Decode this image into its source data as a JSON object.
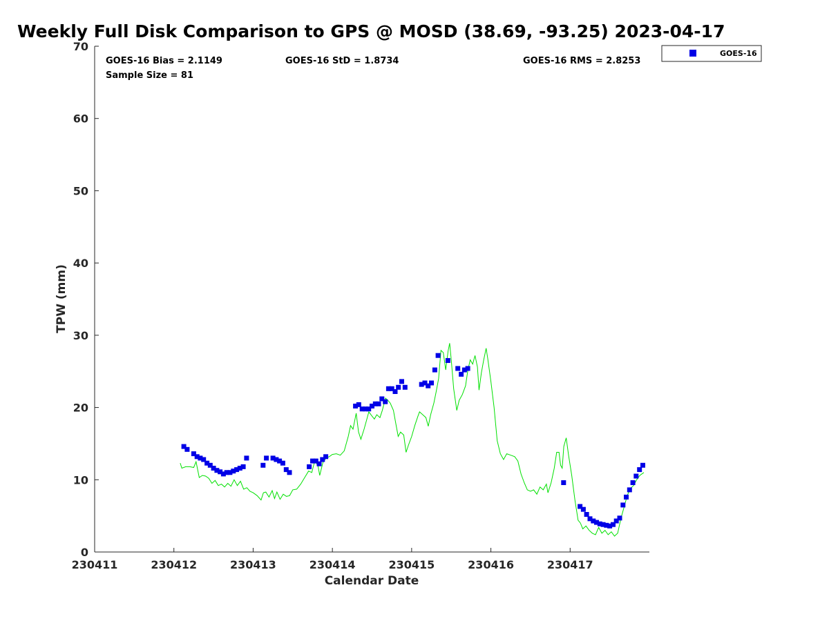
{
  "chart_data": {
    "type": "scatter",
    "title": "Weekly Full Disk Comparison to GPS @ MOSD (38.69, -93.25) 2023-04-17",
    "xlabel": "Calendar Date",
    "ylabel": "TPW (mm)",
    "x_unit": "days",
    "xlim": [
      230411,
      230418
    ],
    "ylim": [
      0,
      70
    ],
    "x_ticks": [
      230411,
      230412,
      230413,
      230414,
      230415,
      230416,
      230417
    ],
    "x_tick_labels": [
      "230411",
      "230412",
      "230413",
      "230414",
      "230415",
      "230416",
      "230417"
    ],
    "y_ticks": [
      0,
      10,
      20,
      30,
      40,
      50,
      60,
      70
    ],
    "grid": false,
    "legend": {
      "position": "top-right",
      "entries": [
        "GOES-16"
      ]
    },
    "stats": {
      "bias": "GOES-16 Bias = 2.1149",
      "std": "GOES-16 StD = 1.8734",
      "rms": "GOES-16 RMS = 2.8253",
      "sample": "Sample Size = 81"
    },
    "series": [
      {
        "name": "GOES-16",
        "kind": "scatter",
        "marker": "square",
        "color": "#0000e6",
        "points": [
          [
            230412.125,
            14.6
          ],
          [
            230412.167,
            14.2
          ],
          [
            230412.25,
            13.6
          ],
          [
            230412.292,
            13.2
          ],
          [
            230412.333,
            13.0
          ],
          [
            230412.375,
            12.8
          ],
          [
            230412.417,
            12.3
          ],
          [
            230412.458,
            12.0
          ],
          [
            230412.5,
            11.6
          ],
          [
            230412.542,
            11.3
          ],
          [
            230412.583,
            11.1
          ],
          [
            230412.625,
            10.8
          ],
          [
            230412.667,
            11.0
          ],
          [
            230412.708,
            11.0
          ],
          [
            230412.75,
            11.2
          ],
          [
            230412.792,
            11.4
          ],
          [
            230412.833,
            11.6
          ],
          [
            230412.875,
            11.8
          ],
          [
            230412.917,
            13.0
          ],
          [
            230413.125,
            12.0
          ],
          [
            230413.167,
            13.0
          ],
          [
            230413.25,
            13.0
          ],
          [
            230413.292,
            12.8
          ],
          [
            230413.333,
            12.6
          ],
          [
            230413.375,
            12.3
          ],
          [
            230413.417,
            11.4
          ],
          [
            230413.458,
            11.0
          ],
          [
            230413.708,
            11.8
          ],
          [
            230413.75,
            12.6
          ],
          [
            230413.792,
            12.6
          ],
          [
            230413.833,
            12.2
          ],
          [
            230413.875,
            12.8
          ],
          [
            230413.917,
            13.2
          ],
          [
            230414.292,
            20.2
          ],
          [
            230414.333,
            20.4
          ],
          [
            230414.375,
            19.8
          ],
          [
            230414.417,
            19.8
          ],
          [
            230414.458,
            19.8
          ],
          [
            230414.5,
            20.2
          ],
          [
            230414.542,
            20.5
          ],
          [
            230414.583,
            20.5
          ],
          [
            230414.625,
            21.2
          ],
          [
            230414.667,
            20.8
          ],
          [
            230414.708,
            22.6
          ],
          [
            230414.75,
            22.6
          ],
          [
            230414.792,
            22.2
          ],
          [
            230414.833,
            22.8
          ],
          [
            230414.875,
            23.6
          ],
          [
            230414.917,
            22.8
          ],
          [
            230415.125,
            23.2
          ],
          [
            230415.167,
            23.4
          ],
          [
            230415.208,
            23.0
          ],
          [
            230415.25,
            23.4
          ],
          [
            230415.292,
            25.2
          ],
          [
            230415.333,
            27.2
          ],
          [
            230415.458,
            26.5
          ],
          [
            230415.583,
            25.4
          ],
          [
            230415.625,
            24.6
          ],
          [
            230415.667,
            25.2
          ],
          [
            230415.708,
            25.4
          ],
          [
            230416.917,
            9.6
          ],
          [
            230417.125,
            6.3
          ],
          [
            230417.167,
            5.9
          ],
          [
            230417.208,
            5.2
          ],
          [
            230417.25,
            4.6
          ],
          [
            230417.292,
            4.3
          ],
          [
            230417.333,
            4.1
          ],
          [
            230417.375,
            3.9
          ],
          [
            230417.417,
            3.8
          ],
          [
            230417.458,
            3.7
          ],
          [
            230417.5,
            3.6
          ],
          [
            230417.542,
            3.8
          ],
          [
            230417.583,
            4.3
          ],
          [
            230417.625,
            4.7
          ],
          [
            230417.667,
            6.5
          ],
          [
            230417.708,
            7.6
          ],
          [
            230417.75,
            8.6
          ],
          [
            230417.792,
            9.6
          ],
          [
            230417.833,
            10.5
          ],
          [
            230417.875,
            11.4
          ],
          [
            230417.917,
            12.0
          ]
        ]
      },
      {
        "name": "",
        "kind": "line",
        "color": "#00e000",
        "points": [
          [
            230412.08,
            12.3
          ],
          [
            230412.1,
            11.6
          ],
          [
            230412.15,
            11.8
          ],
          [
            230412.2,
            11.8
          ],
          [
            230412.25,
            11.7
          ],
          [
            230412.28,
            12.5
          ],
          [
            230412.32,
            10.3
          ],
          [
            230412.36,
            10.6
          ],
          [
            230412.4,
            10.5
          ],
          [
            230412.44,
            10.2
          ],
          [
            230412.48,
            9.5
          ],
          [
            230412.52,
            9.9
          ],
          [
            230412.56,
            9.2
          ],
          [
            230412.6,
            9.4
          ],
          [
            230412.64,
            9.0
          ],
          [
            230412.68,
            9.5
          ],
          [
            230412.72,
            9.1
          ],
          [
            230412.76,
            10.0
          ],
          [
            230412.8,
            9.2
          ],
          [
            230412.84,
            9.8
          ],
          [
            230412.88,
            8.7
          ],
          [
            230412.92,
            8.9
          ],
          [
            230412.96,
            8.4
          ],
          [
            230413.0,
            8.2
          ],
          [
            230413.05,
            7.8
          ],
          [
            230413.1,
            7.2
          ],
          [
            230413.13,
            8.2
          ],
          [
            230413.16,
            8.3
          ],
          [
            230413.2,
            7.6
          ],
          [
            230413.24,
            8.5
          ],
          [
            230413.27,
            7.4
          ],
          [
            230413.3,
            8.3
          ],
          [
            230413.34,
            7.3
          ],
          [
            230413.38,
            8.0
          ],
          [
            230413.42,
            7.7
          ],
          [
            230413.46,
            7.8
          ],
          [
            230413.5,
            8.6
          ],
          [
            230413.55,
            8.7
          ],
          [
            230413.6,
            9.4
          ],
          [
            230413.65,
            10.3
          ],
          [
            230413.7,
            11.2
          ],
          [
            230413.74,
            11.0
          ],
          [
            230413.78,
            12.7
          ],
          [
            230413.82,
            11.8
          ],
          [
            230413.84,
            10.6
          ],
          [
            230413.88,
            12.4
          ],
          [
            230413.92,
            13.0
          ],
          [
            230413.96,
            13.2
          ],
          [
            230414.0,
            13.5
          ],
          [
            230414.05,
            13.6
          ],
          [
            230414.1,
            13.4
          ],
          [
            230414.15,
            14.0
          ],
          [
            230414.2,
            16.0
          ],
          [
            230414.23,
            17.5
          ],
          [
            230414.26,
            17.0
          ],
          [
            230414.3,
            19.2
          ],
          [
            230414.33,
            16.6
          ],
          [
            230414.36,
            15.6
          ],
          [
            230414.4,
            17.0
          ],
          [
            230414.43,
            18.2
          ],
          [
            230414.46,
            19.4
          ],
          [
            230414.5,
            18.8
          ],
          [
            230414.53,
            18.4
          ],
          [
            230414.56,
            19.0
          ],
          [
            230414.6,
            18.6
          ],
          [
            230414.63,
            19.6
          ],
          [
            230414.67,
            21.3
          ],
          [
            230414.7,
            21.0
          ],
          [
            230414.73,
            20.6
          ],
          [
            230414.77,
            19.6
          ],
          [
            230414.8,
            17.8
          ],
          [
            230414.83,
            16.0
          ],
          [
            230414.86,
            16.6
          ],
          [
            230414.9,
            16.2
          ],
          [
            230414.93,
            13.8
          ],
          [
            230414.96,
            14.8
          ],
          [
            230415.0,
            16.0
          ],
          [
            230415.04,
            17.5
          ],
          [
            230415.08,
            18.8
          ],
          [
            230415.1,
            19.4
          ],
          [
            230415.14,
            19.0
          ],
          [
            230415.18,
            18.6
          ],
          [
            230415.21,
            17.4
          ],
          [
            230415.24,
            19.0
          ],
          [
            230415.28,
            20.6
          ],
          [
            230415.31,
            22.2
          ],
          [
            230415.34,
            24.0
          ],
          [
            230415.37,
            27.9
          ],
          [
            230415.4,
            27.6
          ],
          [
            230415.43,
            25.2
          ],
          [
            230415.46,
            27.8
          ],
          [
            230415.48,
            28.9
          ],
          [
            230415.5,
            26.6
          ],
          [
            230415.53,
            22.6
          ],
          [
            230415.57,
            19.6
          ],
          [
            230415.6,
            21.0
          ],
          [
            230415.64,
            21.8
          ],
          [
            230415.68,
            23.0
          ],
          [
            230415.71,
            25.2
          ],
          [
            230415.74,
            26.6
          ],
          [
            230415.77,
            26.0
          ],
          [
            230415.8,
            27.2
          ],
          [
            230415.83,
            25.6
          ],
          [
            230415.85,
            22.4
          ],
          [
            230415.88,
            24.8
          ],
          [
            230415.91,
            26.6
          ],
          [
            230415.94,
            28.2
          ],
          [
            230415.96,
            26.8
          ],
          [
            230416.0,
            23.6
          ],
          [
            230416.04,
            20.0
          ],
          [
            230416.08,
            15.4
          ],
          [
            230416.12,
            13.6
          ],
          [
            230416.16,
            12.8
          ],
          [
            230416.2,
            13.6
          ],
          [
            230416.25,
            13.4
          ],
          [
            230416.3,
            13.2
          ],
          [
            230416.34,
            12.6
          ],
          [
            230416.38,
            10.8
          ],
          [
            230416.42,
            9.6
          ],
          [
            230416.46,
            8.6
          ],
          [
            230416.5,
            8.4
          ],
          [
            230416.54,
            8.6
          ],
          [
            230416.58,
            8.0
          ],
          [
            230416.62,
            9.0
          ],
          [
            230416.66,
            8.6
          ],
          [
            230416.7,
            9.4
          ],
          [
            230416.72,
            8.2
          ],
          [
            230416.76,
            9.6
          ],
          [
            230416.8,
            11.6
          ],
          [
            230416.83,
            13.8
          ],
          [
            230416.86,
            13.8
          ],
          [
            230416.88,
            12.0
          ],
          [
            230416.9,
            11.6
          ],
          [
            230416.92,
            14.6
          ],
          [
            230416.95,
            15.8
          ],
          [
            230416.98,
            13.4
          ],
          [
            230417.02,
            10.6
          ],
          [
            230417.06,
            7.2
          ],
          [
            230417.1,
            4.4
          ],
          [
            230417.13,
            4.0
          ],
          [
            230417.16,
            3.2
          ],
          [
            230417.2,
            3.6
          ],
          [
            230417.24,
            3.0
          ],
          [
            230417.28,
            2.6
          ],
          [
            230417.32,
            2.4
          ],
          [
            230417.36,
            3.4
          ],
          [
            230417.4,
            2.6
          ],
          [
            230417.44,
            3.0
          ],
          [
            230417.48,
            2.4
          ],
          [
            230417.52,
            2.8
          ],
          [
            230417.56,
            2.2
          ],
          [
            230417.6,
            2.6
          ],
          [
            230417.64,
            4.6
          ],
          [
            230417.68,
            6.2
          ],
          [
            230417.72,
            7.8
          ],
          [
            230417.76,
            8.8
          ],
          [
            230417.8,
            9.2
          ],
          [
            230417.84,
            10.0
          ],
          [
            230417.88,
            10.6
          ],
          [
            230417.93,
            11.0
          ]
        ]
      }
    ]
  }
}
